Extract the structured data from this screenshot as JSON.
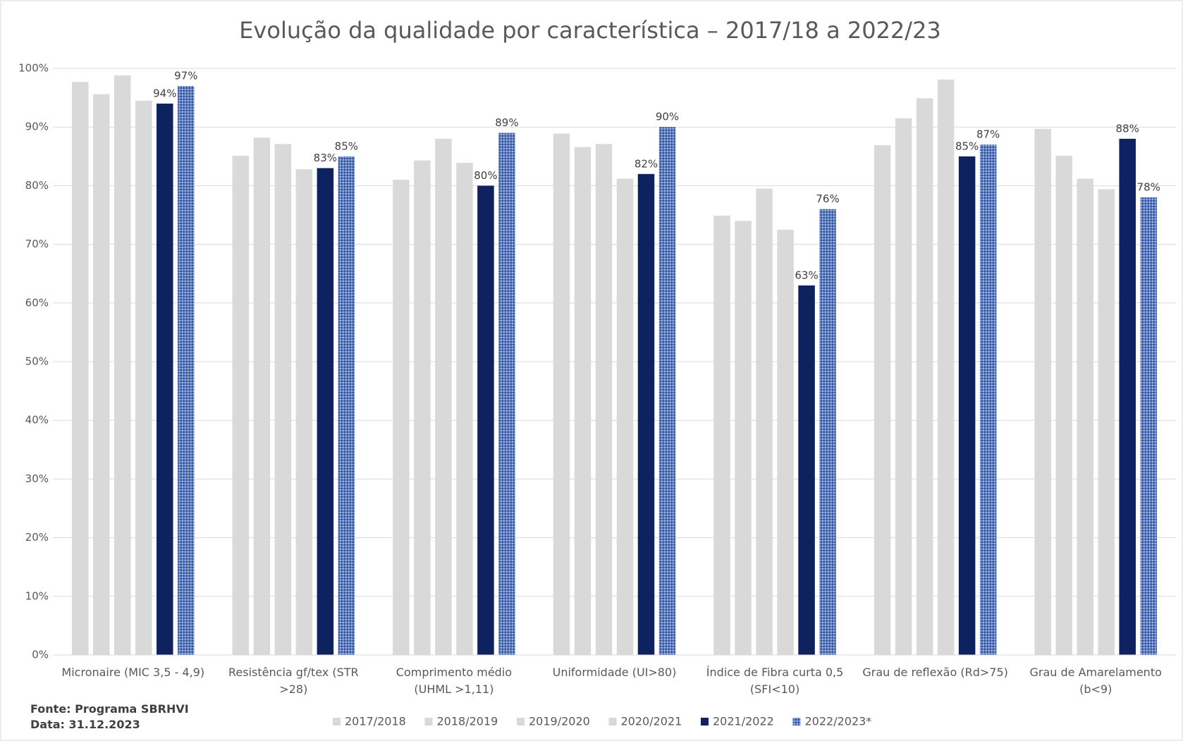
{
  "chart_data": {
    "type": "bar",
    "title": "Evolução da qualidade por característica – 2017/18 a 2022/23",
    "categories": [
      "Micronaire (MIC 3,5 - 4,9)",
      "Resistência gf/tex (STR >28)",
      "Comprimento médio (UHML >1,11)",
      "Uniformidade (UI>80)",
      "Índice de Fibra curta 0,5 (SFI<10)",
      "Grau de reflexão (Rd>75)",
      "Grau de Amarelamento (b<9)"
    ],
    "series": [
      {
        "name": "2017/2018",
        "color": "#d9d9d9",
        "values": [
          97.7,
          85.1,
          81.0,
          88.9,
          74.9,
          86.9,
          89.7
        ]
      },
      {
        "name": "2018/2019",
        "color": "#d9d9d9",
        "values": [
          95.6,
          88.2,
          84.3,
          86.6,
          74.0,
          91.5,
          85.1
        ]
      },
      {
        "name": "2019/2020",
        "color": "#d9d9d9",
        "values": [
          98.8,
          87.1,
          88.0,
          87.1,
          79.5,
          94.9,
          81.2
        ]
      },
      {
        "name": "2020/2021",
        "color": "#d9d9d9",
        "values": [
          94.5,
          82.8,
          83.9,
          81.2,
          72.5,
          98.1,
          79.4
        ]
      },
      {
        "name": "2021/2022",
        "color": "#0f2260",
        "values": [
          94,
          83,
          80,
          82,
          63,
          85,
          88
        ],
        "value_labels": [
          "94%",
          "83%",
          "80%",
          "82%",
          "63%",
          "85%",
          "88%"
        ]
      },
      {
        "name": "2022/2023*",
        "color": "#5a7ec6",
        "pattern": true,
        "values": [
          97,
          85,
          89,
          90,
          76,
          87,
          78
        ],
        "value_labels": [
          "97%",
          "85%",
          "89%",
          "90%",
          "76%",
          "87%",
          "78%"
        ]
      }
    ],
    "ylim": [
      0,
      100
    ],
    "yticks": [
      {
        "value": 0,
        "label": "0%"
      },
      {
        "value": 10,
        "label": "10%"
      },
      {
        "value": 20,
        "label": "20%"
      },
      {
        "value": 30,
        "label": "30%"
      },
      {
        "value": 40,
        "label": "40%"
      },
      {
        "value": 50,
        "label": "50%"
      },
      {
        "value": 60,
        "label": "60%"
      },
      {
        "value": 70,
        "label": "70%"
      },
      {
        "value": 80,
        "label": "80%"
      },
      {
        "value": 90,
        "label": "90%"
      },
      {
        "value": 100,
        "label": "100%"
      }
    ],
    "grid": true,
    "legend": "bottom",
    "notes": [
      "Fonte: Programa SBRHVI",
      "Data: 31.12.2023"
    ]
  }
}
